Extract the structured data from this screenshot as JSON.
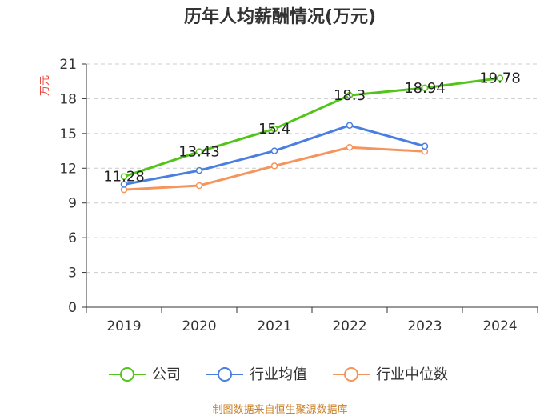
{
  "chart_data": {
    "type": "line",
    "title": "历年人均薪酬情况(万元)",
    "ylabel": "万元",
    "xlabel": "",
    "ylim": [
      0,
      21
    ],
    "yticks": [
      0,
      3,
      6,
      9,
      12,
      15,
      18,
      21
    ],
    "categories": [
      "2019",
      "2020",
      "2021",
      "2022",
      "2023",
      "2024"
    ],
    "series": [
      {
        "name": "公司",
        "color": "#52c41a",
        "values": [
          11.28,
          13.43,
          15.4,
          18.3,
          18.94,
          19.78
        ],
        "labels": [
          "11.28",
          "13.43",
          "15.4",
          "18.3",
          "18.94",
          "19.78"
        ]
      },
      {
        "name": "行业均值",
        "color": "#4a7fe0",
        "values": [
          10.6,
          11.8,
          13.5,
          15.7,
          13.9,
          null
        ]
      },
      {
        "name": "行业中位数",
        "color": "#f5955b",
        "values": [
          10.15,
          10.5,
          12.2,
          13.8,
          13.45,
          null
        ]
      }
    ],
    "grid": true,
    "legend": "bottom",
    "source": "制图数据来自恒生聚源数据库"
  }
}
